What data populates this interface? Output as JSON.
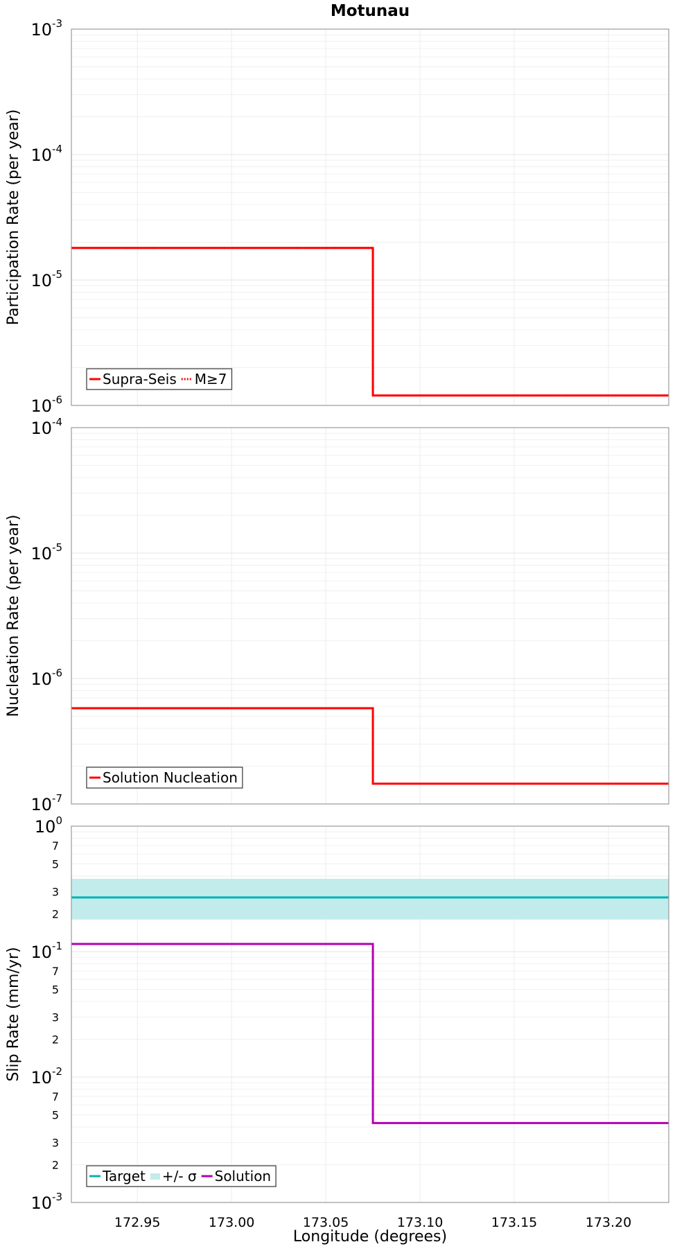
{
  "chart_data": [
    {
      "type": "line",
      "title": "Motunau",
      "xlabel": "",
      "ylabel": "Participation Rate (per year)",
      "yscale": "log",
      "xlim": [
        172.915,
        173.232
      ],
      "ylim": [
        1e-06,
        0.001
      ],
      "grid": true,
      "legend_position": "bottom-left",
      "series": [
        {
          "name": "Supra-Seis",
          "color": "#ff0000",
          "style": "solid",
          "points": [
            [
              172.915,
              1.8e-05
            ],
            [
              173.075,
              1.8e-05
            ],
            [
              173.075,
              1.2e-06
            ],
            [
              173.232,
              1.2e-06
            ]
          ]
        },
        {
          "name": "M≥7",
          "color": "#ff0000",
          "style": "dotted",
          "points": [
            [
              172.915,
              1.8e-05
            ],
            [
              173.075,
              1.8e-05
            ],
            [
              173.075,
              1.2e-06
            ],
            [
              173.232,
              1.2e-06
            ]
          ]
        }
      ]
    },
    {
      "type": "line",
      "title": "",
      "xlabel": "",
      "ylabel": "Nucleation Rate (per year)",
      "yscale": "log",
      "xlim": [
        172.915,
        173.232
      ],
      "ylim": [
        1e-07,
        0.0001
      ],
      "grid": true,
      "legend_position": "bottom-left",
      "series": [
        {
          "name": "Solution Nucleation",
          "color": "#ff0000",
          "style": "solid",
          "points": [
            [
              172.915,
              5.8e-07
            ],
            [
              173.075,
              5.8e-07
            ],
            [
              173.075,
              1.45e-07
            ],
            [
              173.232,
              1.45e-07
            ]
          ]
        }
      ]
    },
    {
      "type": "line",
      "title": "",
      "xlabel": "Longitude (degrees)",
      "ylabel": "Slip Rate (mm/yr)",
      "yscale": "log",
      "xlim": [
        172.915,
        173.232
      ],
      "ylim": [
        0.001,
        1
      ],
      "grid": true,
      "legend_position": "bottom-left",
      "xticks": [
        "172.95",
        "173.00",
        "173.05",
        "173.10",
        "173.15",
        "173.20"
      ],
      "series": [
        {
          "name": "Target",
          "color": "#00b3b3",
          "style": "solid",
          "points": [
            [
              172.915,
              0.27
            ],
            [
              173.232,
              0.27
            ]
          ]
        },
        {
          "name": "+/- σ",
          "color": "#c2ecec",
          "style": "band",
          "band": [
            [
              172.915,
              0.18,
              0.38
            ],
            [
              173.232,
              0.18,
              0.38
            ]
          ]
        },
        {
          "name": "Solution",
          "color": "#b300b3",
          "style": "solid",
          "points": [
            [
              172.915,
              0.115
            ],
            [
              173.075,
              0.115
            ],
            [
              173.075,
              0.0043
            ],
            [
              173.232,
              0.0043
            ]
          ]
        }
      ]
    }
  ]
}
